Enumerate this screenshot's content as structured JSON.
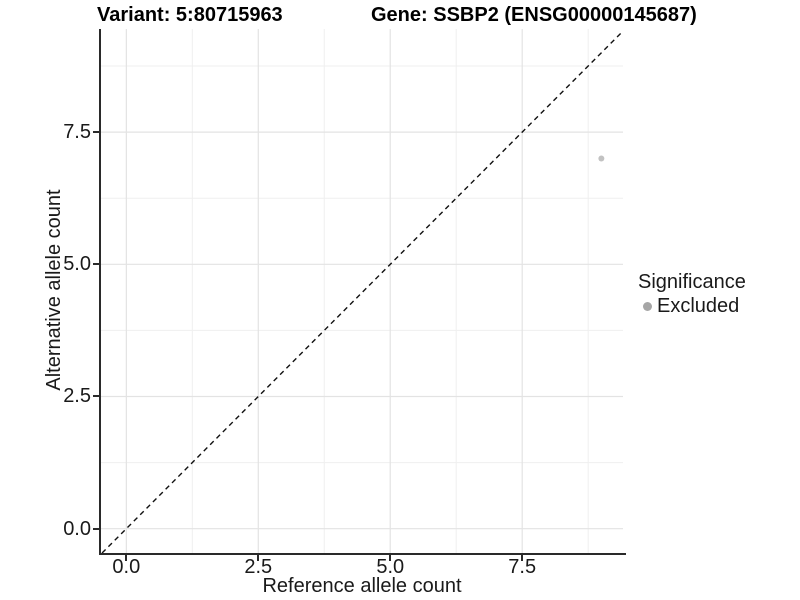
{
  "header": {
    "variant_title": "Variant: 5:80715963",
    "gene_title": "Gene: SSBP2 (ENSG00000145687)"
  },
  "axes": {
    "x": {
      "label": "Reference allele count",
      "major_ticks": [
        {
          "value": 0,
          "label": "0.0"
        },
        {
          "value": 2.5,
          "label": "2.5"
        },
        {
          "value": 5,
          "label": "5.0"
        },
        {
          "value": 7.5,
          "label": "7.5"
        }
      ],
      "minor_ticks": [
        1.25,
        3.75,
        6.25,
        8.75
      ]
    },
    "y": {
      "label": "Alternative allele count",
      "major_ticks": [
        {
          "value": 0,
          "label": "0.0"
        },
        {
          "value": 2.5,
          "label": "2.5"
        },
        {
          "value": 5,
          "label": "5.0"
        },
        {
          "value": 7.5,
          "label": "7.5"
        }
      ],
      "minor_ticks": [
        1.25,
        3.75,
        6.25,
        8.75
      ]
    }
  },
  "legend": {
    "title": "Significance",
    "items": [
      {
        "label": "Excluded",
        "marker": "circle",
        "color": "#a6a6a6"
      }
    ]
  },
  "chart_data": {
    "type": "scatter",
    "title_left": "Variant: 5:80715963",
    "title_right": "Gene: SSBP2 (ENSG00000145687)",
    "xlabel": "Reference allele count",
    "ylabel": "Alternative allele count",
    "xlim": [
      -0.48,
      9.41
    ],
    "ylim": [
      -0.46,
      9.45
    ],
    "x_ticks": [
      0,
      2.5,
      5,
      7.5
    ],
    "y_ticks": [
      0,
      2.5,
      5,
      7.5
    ],
    "grid": "major and minor, light gray, white background",
    "legend_position": "right-center",
    "series": [
      {
        "name": "Excluded",
        "color": "#c2c2c2",
        "points": [
          {
            "x": 9,
            "y": 7
          }
        ]
      }
    ],
    "reference_line": {
      "type": "identity y=x",
      "style": "dashed",
      "color": "#111111"
    }
  },
  "colors": {
    "background": "#ffffff",
    "axis_line": "#2a2a2a",
    "grid_major": "#e3e3e3",
    "grid_minor": "#efefef",
    "text": "#1a1a1a",
    "point": "#c2c2c2",
    "legend_dot": "#a6a6a6"
  }
}
